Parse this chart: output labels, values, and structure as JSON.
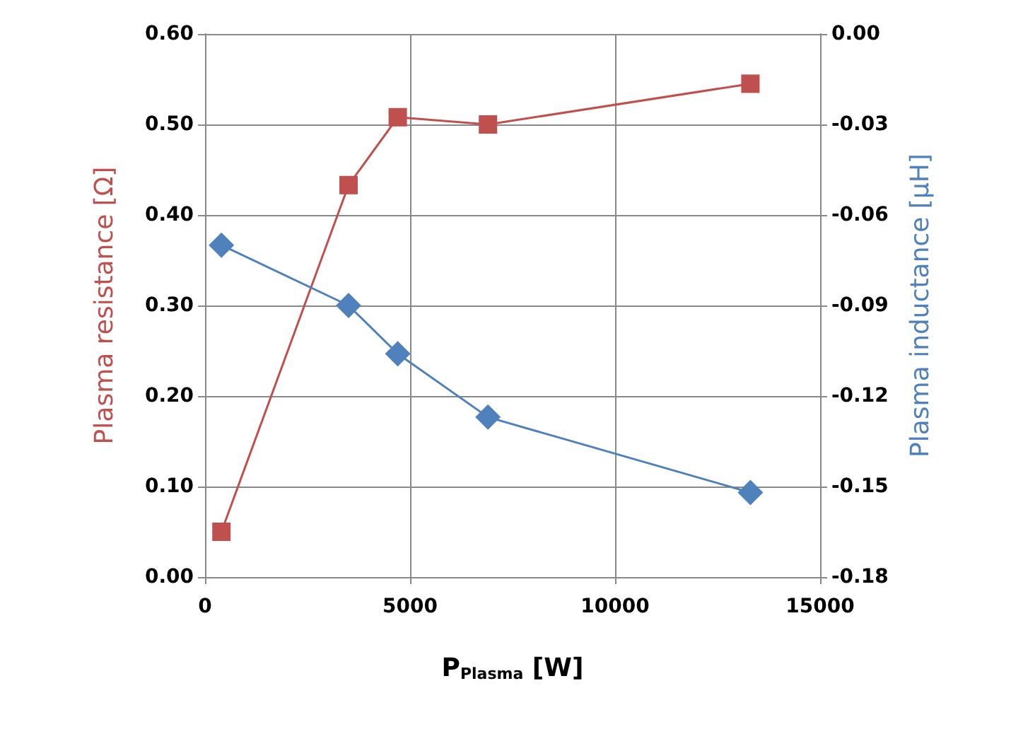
{
  "chart_data": {
    "type": "line",
    "xlabel": "P$_{Plasma}$ [W]",
    "ylabel": "Plasma resistance [Ω]",
    "y2label": "Plasma inductance [µH]",
    "xlim": [
      0,
      15000
    ],
    "xticks": [
      0,
      5000,
      10000,
      15000
    ],
    "ylim": [
      0,
      0.6
    ],
    "yticks": [
      {
        "value": 0,
        "label": "0.00"
      },
      {
        "value": 0.1,
        "label": "0.10"
      },
      {
        "value": 0.2,
        "label": "0.20"
      },
      {
        "value": 0.3,
        "label": "0.30"
      },
      {
        "value": 0.4,
        "label": "0.40"
      },
      {
        "value": 0.5,
        "label": "0.50"
      },
      {
        "value": 0.6,
        "label": "0.60"
      }
    ],
    "y2lim": [
      -0.18,
      0
    ],
    "y2ticks": [
      -0.18,
      -0.15,
      -0.12,
      -0.09,
      -0.06,
      -0.03,
      {
        "value": 0,
        "label": "0.00"
      }
    ],
    "grid": true,
    "line_style": "solid",
    "series": [
      {
        "name": null,
        "color": "#c0504d",
        "marker": "square",
        "x": [
          400,
          3500,
          4700,
          6900,
          13300
        ],
        "values": [
          0.05,
          0.433,
          0.508,
          0.5,
          0.545
        ]
      },
      {
        "name": null,
        "color": "#4f81bd",
        "marker": "diamond",
        "axis": "y2",
        "x": [
          400,
          3500,
          4700,
          6900,
          13300
        ],
        "values": [
          -0.07,
          -0.09,
          -0.106,
          -0.127,
          -0.152
        ]
      }
    ]
  }
}
